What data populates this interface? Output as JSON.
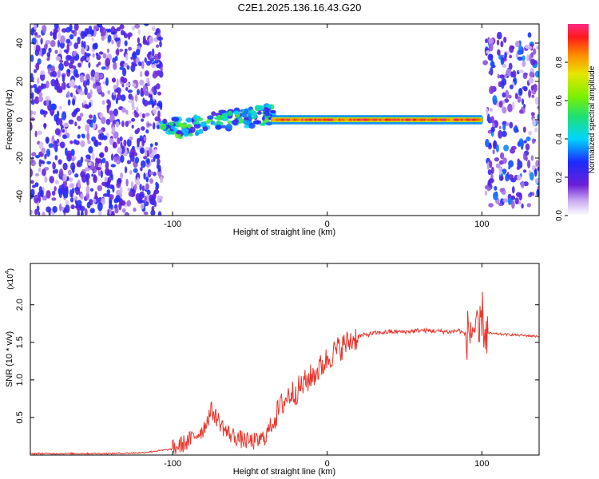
{
  "title": "C2E1.2025.136.16.43.G20",
  "chart_data": [
    {
      "type": "heatmap",
      "xlabel": "Height of straight line (km)",
      "ylabel": "Frequency (Hz)",
      "xlim": [
        -192,
        137
      ],
      "ylim": [
        -50,
        50
      ],
      "xticks": [
        -100,
        0,
        100
      ],
      "yticks": [
        -40,
        -20,
        0,
        20,
        40
      ],
      "colorbar": {
        "label": "Normalized spectral amplitude",
        "range": [
          0,
          1
        ],
        "ticks": [
          "0.0",
          "0.2",
          "0.4",
          "0.6",
          "0.8"
        ]
      },
      "regions": [
        {
          "name": "noise-left",
          "x": [
            -192,
            -107
          ],
          "freq": [
            -50,
            50
          ],
          "amplitude": [
            0.05,
            0.3
          ]
        },
        {
          "name": "ramp",
          "x": [
            -107,
            -35
          ],
          "freq_center_start": -5,
          "freq_center_end": 3,
          "amplitude": [
            0.2,
            0.6
          ]
        },
        {
          "name": "carrier",
          "x": [
            -35,
            100
          ],
          "freq_center": 0,
          "amplitude": [
            0.8,
            1.0
          ]
        },
        {
          "name": "noise-right",
          "x": [
            102,
            137
          ],
          "freq": [
            -45,
            45
          ],
          "amplitude": [
            0.05,
            0.35
          ]
        }
      ]
    },
    {
      "type": "line",
      "xlabel": "Height of straight line (km)",
      "ylabel": "SNR (10 * v/v)",
      "y_multiplier": "(x10",
      "y_multiplier_exp": "4",
      "xlim": [
        -192,
        137
      ],
      "ylim": [
        0,
        2.55
      ],
      "xticks": [
        -100,
        0,
        100
      ],
      "yticks": [
        "0.5",
        "1.0",
        "1.5",
        "2.0"
      ],
      "color": "#e8352b",
      "x": [
        -192,
        -140,
        -120,
        -100,
        -90,
        -80,
        -75,
        -70,
        -65,
        -60,
        -55,
        -50,
        -45,
        -40,
        -35,
        -30,
        -25,
        -20,
        -15,
        -10,
        -5,
        0,
        5,
        10,
        15,
        20,
        30,
        40,
        50,
        60,
        70,
        80,
        85,
        90,
        95,
        98,
        100,
        102,
        105,
        110,
        120,
        137
      ],
      "y": [
        0.02,
        0.02,
        0.03,
        0.08,
        0.18,
        0.35,
        0.6,
        0.45,
        0.3,
        0.25,
        0.2,
        0.18,
        0.18,
        0.25,
        0.45,
        0.65,
        0.8,
        0.85,
        0.95,
        1.05,
        1.15,
        1.28,
        1.38,
        1.45,
        1.52,
        1.58,
        1.62,
        1.64,
        1.64,
        1.66,
        1.65,
        1.64,
        1.66,
        1.6,
        1.7,
        1.5,
        1.9,
        1.62,
        1.62,
        1.61,
        1.6,
        1.58
      ]
    }
  ]
}
